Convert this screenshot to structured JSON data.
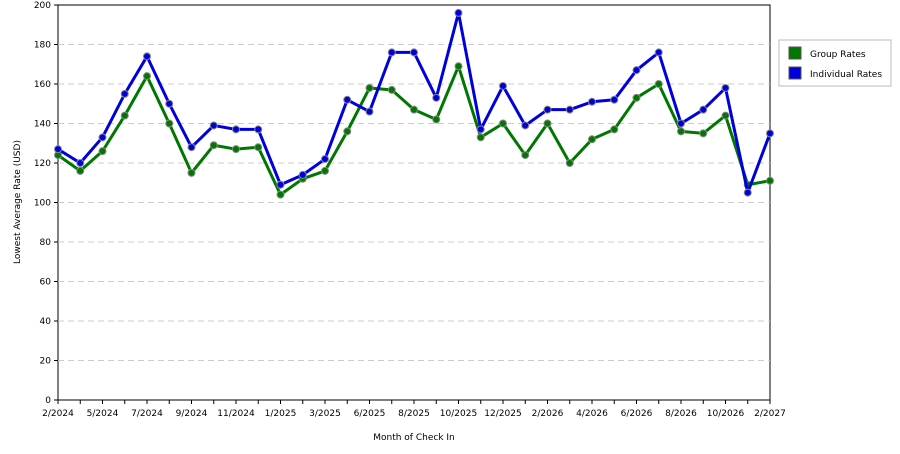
{
  "chart_data": {
    "type": "line",
    "y_label": "Lowest Average Rate (USD)",
    "x_label": "Month of Check In",
    "categories": [
      "2/2024",
      null,
      "5/2024",
      null,
      "7/2024",
      null,
      "9/2024",
      null,
      "11/2024",
      null,
      "1/2025",
      null,
      "3/2025",
      null,
      "6/2025",
      null,
      "8/2025",
      null,
      "10/2025",
      null,
      "12/2025",
      null,
      "2/2026",
      null,
      "4/2026",
      null,
      "6/2026",
      null,
      "8/2026",
      null,
      "10/2026",
      null,
      "2/2027"
    ],
    "series": [
      {
        "name": "Group Rates",
        "color": "#007700",
        "values": [
          124,
          116,
          126,
          144,
          164,
          140,
          115,
          129,
          127,
          128,
          104,
          112,
          116,
          136,
          158,
          157,
          147,
          142,
          169,
          133,
          140,
          124,
          140,
          120,
          132,
          137,
          153,
          160,
          136,
          135,
          144,
          109,
          111
        ]
      },
      {
        "name": "Individual Rates",
        "color": "#0000dd",
        "values": [
          127,
          120,
          133,
          155,
          174,
          150,
          128,
          139,
          137,
          137,
          109,
          114,
          122,
          152,
          146,
          176,
          176,
          153,
          196,
          137,
          159,
          139,
          147,
          147,
          151,
          152,
          167,
          176,
          140,
          147,
          158,
          105,
          135
        ]
      }
    ],
    "ylim": [
      0,
      200
    ],
    "yticks": [
      0,
      20,
      40,
      60,
      80,
      100,
      120,
      140,
      160,
      180,
      200
    ],
    "grid": true,
    "legend": "right"
  }
}
